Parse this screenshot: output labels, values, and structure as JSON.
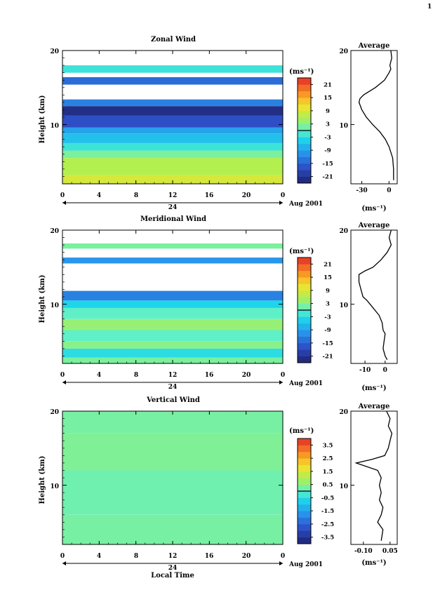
{
  "page": {
    "corner_mark": "1"
  },
  "common": {
    "height_label": "Height (km)",
    "unit_label": "(ms⁻¹)",
    "average_title": "Average",
    "x_ticks": [
      "0",
      "4",
      "8",
      "12",
      "16",
      "20",
      "0"
    ],
    "date_ticks": [
      "24"
    ],
    "date_label": "Aug 2001",
    "x_label": "Local Time",
    "y_ticks": [
      "20",
      "10"
    ]
  },
  "chart_data": [
    {
      "type": "heatmap",
      "title": "Zonal Wind",
      "xlabel": "",
      "ylabel": "Height (km)",
      "xlim": [
        0,
        24
      ],
      "ylim": [
        2,
        20
      ],
      "x_ticks": [
        0,
        4,
        8,
        12,
        16,
        20,
        24
      ],
      "y_ticks": [
        10,
        20
      ],
      "date_marker": "24",
      "date_label": "Aug 2001",
      "colorbar": {
        "label": "(ms⁻¹)",
        "ticks": [
          21,
          15,
          9,
          3,
          -3,
          -9,
          -15,
          -21
        ],
        "tick_labels": [
          "21",
          "15",
          "9",
          "3",
          "-3",
          "-9",
          "-15",
          "-21"
        ],
        "range": [
          -24,
          24
        ]
      },
      "layers": [
        {
          "z0": 2.0,
          "z1": 3.2,
          "value": 9
        },
        {
          "z0": 3.2,
          "z1": 5.5,
          "value": 6
        },
        {
          "z0": 5.5,
          "z1": 6.5,
          "value": 2
        },
        {
          "z0": 6.5,
          "z1": 7.5,
          "value": -2
        },
        {
          "z0": 7.5,
          "z1": 8.8,
          "value": -6
        },
        {
          "z0": 8.8,
          "z1": 9.6,
          "value": -9
        },
        {
          "z0": 9.6,
          "z1": 11.2,
          "value": -17
        },
        {
          "z0": 11.2,
          "z1": 12.5,
          "value": -22
        },
        {
          "z0": 12.5,
          "z1": 13.4,
          "value": -12
        },
        {
          "z0": 15.4,
          "z1": 16.4,
          "value": -14
        },
        {
          "z0": 17.0,
          "z1": 18.0,
          "value": -2
        }
      ],
      "average_profile": {
        "title": "Average",
        "xlabel": "(ms⁻¹)",
        "xlim": [
          -42,
          9
        ],
        "x_ticks": [
          -30,
          0
        ],
        "x_tick_labels": [
          "-30",
          "0"
        ],
        "ylim": [
          2,
          20
        ],
        "y_ticks": [
          10,
          20
        ],
        "z": [
          2.5,
          4,
          5.5,
          7,
          8,
          9,
          10,
          11,
          12,
          13,
          13.5,
          14,
          15,
          16,
          17,
          17.5,
          18,
          19,
          20
        ],
        "u": [
          5,
          5,
          4,
          0,
          -4,
          -10,
          -18,
          -25,
          -30,
          -33,
          -32,
          -28,
          -15,
          -5,
          0,
          2,
          1,
          3,
          2
        ]
      }
    },
    {
      "type": "heatmap",
      "title": "Meridional Wind",
      "xlabel": "",
      "ylabel": "Height (km)",
      "xlim": [
        0,
        24
      ],
      "ylim": [
        2,
        20
      ],
      "x_ticks": [
        0,
        4,
        8,
        12,
        16,
        20,
        24
      ],
      "y_ticks": [
        10,
        20
      ],
      "date_marker": "24",
      "date_label": "Aug 2001",
      "colorbar": {
        "label": "(ms⁻¹)",
        "ticks": [
          21,
          15,
          9,
          3,
          -3,
          -9,
          -15,
          -21
        ],
        "tick_labels": [
          "21",
          "15",
          "9",
          "3",
          "-3",
          "-9",
          "-15",
          "-21"
        ],
        "range": [
          -24,
          24
        ]
      },
      "layers": [
        {
          "z0": 2.0,
          "z1": 2.8,
          "value": 2
        },
        {
          "z0": 2.8,
          "z1": 4.0,
          "value": -3
        },
        {
          "z0": 4.0,
          "z1": 5.0,
          "value": 3
        },
        {
          "z0": 5.0,
          "z1": 6.5,
          "value": 0
        },
        {
          "z0": 6.5,
          "z1": 8.0,
          "value": 4
        },
        {
          "z0": 8.0,
          "z1": 9.5,
          "value": 0
        },
        {
          "z0": 9.5,
          "z1": 10.5,
          "value": -4
        },
        {
          "z0": 10.5,
          "z1": 11.8,
          "value": -12
        },
        {
          "z0": 15.5,
          "z1": 16.3,
          "value": -10
        },
        {
          "z0": 17.5,
          "z1": 18.2,
          "value": 2
        }
      ],
      "average_profile": {
        "title": "Average",
        "xlabel": "(ms⁻¹)",
        "xlim": [
          -17,
          6
        ],
        "x_ticks": [
          -10,
          0
        ],
        "x_tick_labels": [
          "-10",
          "0"
        ],
        "ylim": [
          2,
          20
        ],
        "y_ticks": [
          10,
          20
        ],
        "z": [
          2.5,
          3,
          4,
          5,
          6,
          6.5,
          7.5,
          8.5,
          9.5,
          10.5,
          11,
          12,
          13,
          14,
          14.5,
          15,
          16,
          17,
          18,
          19,
          20
        ],
        "u": [
          1,
          0,
          -1,
          -0.5,
          0,
          -1,
          -1.5,
          -3,
          -6,
          -9,
          -11,
          -12,
          -13,
          -13,
          -10,
          -6,
          -2,
          1,
          3,
          2,
          3
        ]
      }
    },
    {
      "type": "heatmap",
      "title": "Vertical Wind",
      "xlabel": "Local Time",
      "ylabel": "Height (km)",
      "xlim": [
        0,
        24
      ],
      "ylim": [
        2,
        20
      ],
      "x_ticks": [
        0,
        4,
        8,
        12,
        16,
        20,
        24
      ],
      "y_ticks": [
        10,
        20
      ],
      "date_marker": "24",
      "date_label": "Aug 2001",
      "colorbar": {
        "label": "(ms⁻¹)",
        "ticks": [
          3.5,
          2.5,
          1.5,
          0.5,
          -0.5,
          -1.5,
          -2.5,
          -3.5
        ],
        "tick_labels": [
          "3.5",
          "2.5",
          "1.5",
          "0.5",
          "-0.5",
          "-1.5",
          "-2.5",
          "-3.5"
        ],
        "range": [
          -4,
          4
        ]
      },
      "layers": [
        {
          "z0": 2.0,
          "z1": 6.0,
          "value": 0.3
        },
        {
          "z0": 6.0,
          "z1": 12.0,
          "value": 0.2
        },
        {
          "z0": 12.0,
          "z1": 17.0,
          "value": 0.4
        },
        {
          "z0": 17.0,
          "z1": 20.0,
          "value": 0.3
        }
      ],
      "average_profile": {
        "title": "Average",
        "xlabel": "(ms⁻¹)",
        "xlim": [
          -0.17,
          0.09
        ],
        "x_ticks": [
          -0.1,
          0.05
        ],
        "x_tick_labels": [
          "-0.10",
          "0.05"
        ],
        "ylim": [
          2,
          20
        ],
        "y_ticks": [
          10,
          20
        ],
        "z": [
          2.5,
          4,
          5,
          6,
          7,
          8,
          9,
          10,
          11,
          12,
          13,
          13.5,
          14,
          15,
          16,
          17,
          18,
          19,
          20
        ],
        "u": [
          0.0,
          0.01,
          -0.02,
          0.0,
          0.01,
          -0.01,
          0.0,
          -0.01,
          0.0,
          -0.02,
          -0.14,
          -0.05,
          0.02,
          0.04,
          0.05,
          0.06,
          0.04,
          0.05,
          0.03
        ]
      }
    }
  ]
}
